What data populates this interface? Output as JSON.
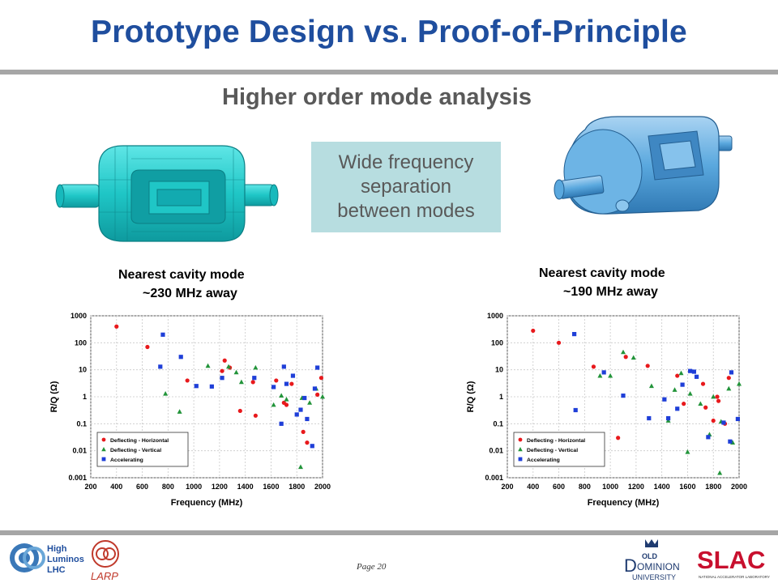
{
  "slide": {
    "title": "Prototype Design vs. Proof-of-Principle",
    "subtitle": "Higher order mode analysis",
    "callout": [
      "Wide frequency",
      "separation",
      "between modes"
    ],
    "page": "Page 20"
  },
  "left_note": [
    "Nearest cavity mode",
    "~230 MHz away"
  ],
  "right_note": [
    "Nearest cavity mode",
    "~190 MHz away"
  ],
  "colors": {
    "title": "#1f4e9e",
    "horizontal": "#e8191c",
    "vertical": "#22943a",
    "accelerating": "#1f3fd8",
    "left_cavity": "#1fc6c6",
    "right_cavity": "#5aa8de"
  },
  "logos": {
    "hilumi": [
      "High",
      "Luminosity",
      "LHC"
    ],
    "larp": "LARP",
    "odu": [
      "OLD",
      "D",
      "OMINION",
      "UNIVERSITY"
    ],
    "slac": "SLAC",
    "slac_sub": "NATIONAL ACCELERATOR LABORATORY"
  },
  "chart_data": [
    {
      "type": "scatter",
      "xlabel": "Frequency (MHz)",
      "ylabel": "R/Q (Ω)",
      "xlim": [
        200,
        2000
      ],
      "x_ticks": [
        "200",
        "400",
        "600",
        "800",
        "1000",
        "1200",
        "1400",
        "1600",
        "1800",
        "2000"
      ],
      "y_scale": "log",
      "ylim": [
        0.001,
        1000
      ],
      "y_ticks": [
        "0.001",
        "0.01",
        "0.1",
        "1",
        "10",
        "100",
        "1000"
      ],
      "grid": true,
      "legend_position": "bottom-left",
      "series": [
        {
          "name": "Deflecting - Horizontal",
          "marker": "circle",
          "points": [
            [
              400,
              400
            ],
            [
              640,
              70
            ],
            [
              950,
              4
            ],
            [
              1220,
              9
            ],
            [
              1240,
              22
            ],
            [
              1280,
              12
            ],
            [
              1360,
              0.3
            ],
            [
              1460,
              3.5
            ],
            [
              1480,
              0.2
            ],
            [
              1640,
              4
            ],
            [
              1700,
              0.6
            ],
            [
              1720,
              0.5
            ],
            [
              1760,
              3
            ],
            [
              1850,
              0.05
            ],
            [
              1880,
              0.02
            ],
            [
              1960,
              1.2
            ],
            [
              1990,
              5
            ]
          ]
        },
        {
          "name": "Deflecting - Vertical",
          "marker": "triangle",
          "points": [
            [
              780,
              1.3
            ],
            [
              890,
              0.28
            ],
            [
              1110,
              14
            ],
            [
              1270,
              13
            ],
            [
              1330,
              8
            ],
            [
              1370,
              3.5
            ],
            [
              1480,
              12
            ],
            [
              1620,
              0.5
            ],
            [
              1680,
              1.1
            ],
            [
              1720,
              0.8
            ],
            [
              1830,
              0.0025
            ],
            [
              1840,
              0.9
            ],
            [
              1900,
              0.6
            ],
            [
              1950,
              2
            ],
            [
              2000,
              1
            ]
          ]
        },
        {
          "name": "Accelerating",
          "marker": "square",
          "points": [
            [
              740,
              13
            ],
            [
              760,
              200
            ],
            [
              900,
              30
            ],
            [
              1020,
              2.5
            ],
            [
              1140,
              2.4
            ],
            [
              1220,
              5
            ],
            [
              1470,
              5
            ],
            [
              1620,
              2.3
            ],
            [
              1680,
              0.1
            ],
            [
              1700,
              13
            ],
            [
              1720,
              3
            ],
            [
              1770,
              6
            ],
            [
              1800,
              0.22
            ],
            [
              1830,
              0.33
            ],
            [
              1860,
              0.9
            ],
            [
              1880,
              0.15
            ],
            [
              1920,
              0.015
            ],
            [
              1940,
              2
            ],
            [
              1960,
              12
            ]
          ]
        }
      ]
    },
    {
      "type": "scatter",
      "xlabel": "Frequency (MHz)",
      "ylabel": "R/Q (Ω)",
      "xlim": [
        200,
        2000
      ],
      "x_ticks": [
        "200",
        "400",
        "600",
        "800",
        "1000",
        "1200",
        "1400",
        "1600",
        "1800",
        "2000"
      ],
      "y_scale": "log",
      "ylim": [
        0.001,
        1000
      ],
      "y_ticks": [
        "0.001",
        "0.01",
        "0.1",
        "1",
        "10",
        "100",
        "1000"
      ],
      "grid": true,
      "legend_position": "bottom-left",
      "series": [
        {
          "name": "Deflecting - Horizontal",
          "marker": "circle",
          "points": [
            [
              400,
              280
            ],
            [
              600,
              100
            ],
            [
              870,
              13
            ],
            [
              1060,
              0.03
            ],
            [
              1120,
              30
            ],
            [
              1290,
              14
            ],
            [
              1520,
              6
            ],
            [
              1570,
              0.55
            ],
            [
              1720,
              3
            ],
            [
              1740,
              0.4
            ],
            [
              1800,
              0.13
            ],
            [
              1830,
              1
            ],
            [
              1840,
              0.7
            ],
            [
              1890,
              0.1
            ],
            [
              1920,
              5
            ]
          ]
        },
        {
          "name": "Deflecting - Vertical",
          "marker": "triangle",
          "points": [
            [
              920,
              6
            ],
            [
              1000,
              6
            ],
            [
              1100,
              45
            ],
            [
              1180,
              28
            ],
            [
              1320,
              2.5
            ],
            [
              1450,
              0.13
            ],
            [
              1500,
              1.8
            ],
            [
              1550,
              7.5
            ],
            [
              1600,
              0.009
            ],
            [
              1620,
              1.3
            ],
            [
              1700,
              0.55
            ],
            [
              1770,
              0.04
            ],
            [
              1800,
              1
            ],
            [
              1850,
              0.0015
            ],
            [
              1860,
              0.12
            ],
            [
              1920,
              2
            ],
            [
              1950,
              0.02
            ],
            [
              2000,
              3
            ]
          ]
        },
        {
          "name": "Accelerating",
          "marker": "square",
          "points": [
            [
              720,
              210
            ],
            [
              730,
              0.32
            ],
            [
              950,
              8
            ],
            [
              1100,
              1.1
            ],
            [
              1300,
              0.16
            ],
            [
              1420,
              0.8
            ],
            [
              1450,
              0.16
            ],
            [
              1520,
              0.36
            ],
            [
              1560,
              2.8
            ],
            [
              1620,
              9
            ],
            [
              1650,
              8.5
            ],
            [
              1670,
              5.5
            ],
            [
              1760,
              0.032
            ],
            [
              1880,
              0.11
            ],
            [
              1930,
              0.022
            ],
            [
              1940,
              8
            ],
            [
              1990,
              0.15
            ]
          ]
        }
      ]
    }
  ]
}
